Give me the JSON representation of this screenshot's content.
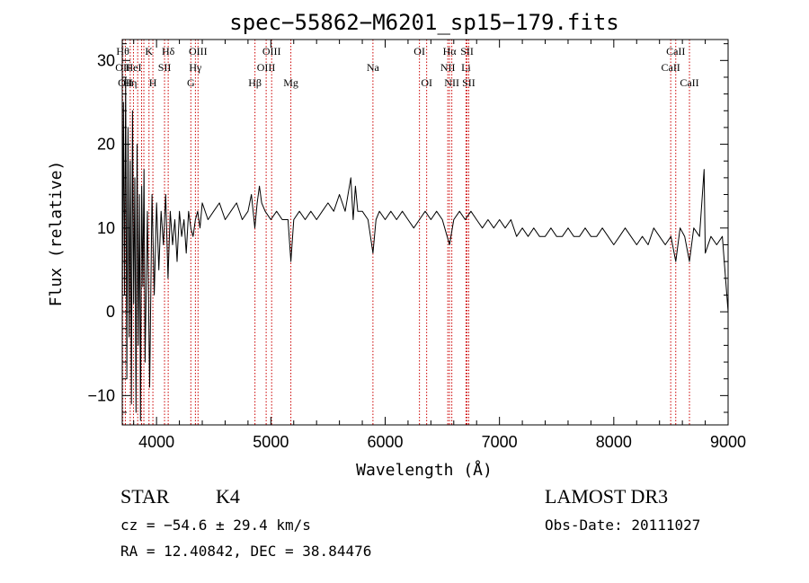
{
  "chart_data": {
    "type": "line",
    "title": "spec−55862−M6201_sp15−179.fits",
    "xlabel": "Wavelength (Å)",
    "ylabel": "Flux (relative)",
    "xlim": [
      3700,
      9000
    ],
    "ylim": [
      -13.5,
      32.5
    ],
    "x_ticks": [
      {
        "value": 4000,
        "label": "4000"
      },
      {
        "value": 5000,
        "label": "5000"
      },
      {
        "value": 6000,
        "label": "6000"
      },
      {
        "value": 7000,
        "label": "7000"
      },
      {
        "value": 8000,
        "label": "8000"
      },
      {
        "value": 9000,
        "label": "9000"
      }
    ],
    "y_ticks": [
      {
        "value": -10,
        "label": "−10"
      },
      {
        "value": 0,
        "label": "0"
      },
      {
        "value": 10,
        "label": "10"
      },
      {
        "value": 20,
        "label": "20"
      },
      {
        "value": 30,
        "label": "30"
      }
    ],
    "series": [
      {
        "name": "flux",
        "color": "#000000",
        "points": [
          [
            3700,
            0
          ],
          [
            3710,
            25
          ],
          [
            3720,
            2
          ],
          [
            3730,
            28
          ],
          [
            3740,
            -8
          ],
          [
            3750,
            22
          ],
          [
            3760,
            -3
          ],
          [
            3770,
            18
          ],
          [
            3780,
            -11
          ],
          [
            3790,
            24
          ],
          [
            3800,
            1
          ],
          [
            3810,
            16
          ],
          [
            3820,
            -12
          ],
          [
            3830,
            20
          ],
          [
            3840,
            -4
          ],
          [
            3850,
            14
          ],
          [
            3860,
            -13
          ],
          [
            3870,
            15
          ],
          [
            3880,
            3
          ],
          [
            3890,
            17
          ],
          [
            3900,
            -6
          ],
          [
            3920,
            12
          ],
          [
            3940,
            -9
          ],
          [
            3960,
            14
          ],
          [
            3980,
            2
          ],
          [
            4000,
            13
          ],
          [
            4020,
            5
          ],
          [
            4040,
            12
          ],
          [
            4060,
            8
          ],
          [
            4080,
            14
          ],
          [
            4100,
            4
          ],
          [
            4120,
            12
          ],
          [
            4140,
            8
          ],
          [
            4160,
            11
          ],
          [
            4180,
            6
          ],
          [
            4200,
            12
          ],
          [
            4220,
            9
          ],
          [
            4240,
            11
          ],
          [
            4260,
            7
          ],
          [
            4280,
            12
          ],
          [
            4300,
            10
          ],
          [
            4320,
            9
          ],
          [
            4340,
            11
          ],
          [
            4360,
            12
          ],
          [
            4380,
            10
          ],
          [
            4400,
            13
          ],
          [
            4450,
            11
          ],
          [
            4500,
            12
          ],
          [
            4550,
            13
          ],
          [
            4600,
            11
          ],
          [
            4650,
            12
          ],
          [
            4700,
            13
          ],
          [
            4750,
            11
          ],
          [
            4800,
            12
          ],
          [
            4830,
            14
          ],
          [
            4860,
            10
          ],
          [
            4880,
            13
          ],
          [
            4900,
            15
          ],
          [
            4920,
            13
          ],
          [
            4950,
            12
          ],
          [
            5000,
            11
          ],
          [
            5050,
            12
          ],
          [
            5100,
            11
          ],
          [
            5150,
            11
          ],
          [
            5175,
            6
          ],
          [
            5200,
            11
          ],
          [
            5250,
            12
          ],
          [
            5300,
            11
          ],
          [
            5350,
            12
          ],
          [
            5400,
            11
          ],
          [
            5450,
            12
          ],
          [
            5500,
            13
          ],
          [
            5550,
            12
          ],
          [
            5600,
            14
          ],
          [
            5650,
            12
          ],
          [
            5700,
            16
          ],
          [
            5720,
            11
          ],
          [
            5740,
            15
          ],
          [
            5760,
            12
          ],
          [
            5800,
            12
          ],
          [
            5850,
            11
          ],
          [
            5893,
            7
          ],
          [
            5920,
            11
          ],
          [
            5950,
            12
          ],
          [
            6000,
            11
          ],
          [
            6050,
            12
          ],
          [
            6100,
            11
          ],
          [
            6150,
            12
          ],
          [
            6200,
            11
          ],
          [
            6250,
            10
          ],
          [
            6300,
            11
          ],
          [
            6350,
            12
          ],
          [
            6400,
            11
          ],
          [
            6450,
            12
          ],
          [
            6500,
            11
          ],
          [
            6563,
            8
          ],
          [
            6600,
            11
          ],
          [
            6650,
            12
          ],
          [
            6700,
            11
          ],
          [
            6750,
            12
          ],
          [
            6800,
            11
          ],
          [
            6850,
            10
          ],
          [
            6900,
            11
          ],
          [
            6950,
            10
          ],
          [
            7000,
            11
          ],
          [
            7050,
            10
          ],
          [
            7100,
            11
          ],
          [
            7150,
            9
          ],
          [
            7200,
            10
          ],
          [
            7250,
            9
          ],
          [
            7300,
            10
          ],
          [
            7350,
            9
          ],
          [
            7400,
            9
          ],
          [
            7450,
            10
          ],
          [
            7500,
            9
          ],
          [
            7550,
            9
          ],
          [
            7600,
            10
          ],
          [
            7650,
            9
          ],
          [
            7700,
            9
          ],
          [
            7750,
            10
          ],
          [
            7800,
            9
          ],
          [
            7850,
            9
          ],
          [
            7900,
            10
          ],
          [
            7950,
            9
          ],
          [
            8000,
            8
          ],
          [
            8050,
            9
          ],
          [
            8100,
            10
          ],
          [
            8150,
            9
          ],
          [
            8200,
            8
          ],
          [
            8250,
            9
          ],
          [
            8300,
            8
          ],
          [
            8350,
            10
          ],
          [
            8400,
            9
          ],
          [
            8450,
            8
          ],
          [
            8500,
            9
          ],
          [
            8542,
            6
          ],
          [
            8580,
            10
          ],
          [
            8620,
            9
          ],
          [
            8662,
            6
          ],
          [
            8700,
            10
          ],
          [
            8750,
            9
          ],
          [
            8790,
            17
          ],
          [
            8800,
            7
          ],
          [
            8850,
            9
          ],
          [
            8900,
            8
          ],
          [
            8950,
            9
          ],
          [
            9000,
            0
          ]
        ]
      }
    ],
    "lines": [
      {
        "x": 3705,
        "labels": [
          {
            "row": 1,
            "text": "Hθ"
          },
          {
            "row": 2,
            "text": "OII"
          }
        ]
      },
      {
        "x": 3727,
        "labels": [
          {
            "row": 3,
            "text": "OII"
          }
        ]
      },
      {
        "x": 3770,
        "labels": [
          {
            "row": 3,
            "text": "Hη"
          }
        ]
      },
      {
        "x": 3798,
        "labels": [
          {
            "row": 2,
            "text": "HeI"
          }
        ]
      },
      {
        "x": 3835,
        "labels": []
      },
      {
        "x": 3869,
        "labels": []
      },
      {
        "x": 3889,
        "labels": []
      },
      {
        "x": 3934,
        "labels": [
          {
            "row": 1,
            "text": "K"
          }
        ]
      },
      {
        "x": 3968,
        "labels": [
          {
            "row": 3,
            "text": "H"
          }
        ]
      },
      {
        "x": 4070,
        "labels": [
          {
            "row": 2,
            "text": "SII"
          }
        ]
      },
      {
        "x": 4102,
        "labels": [
          {
            "row": 1,
            "text": "Hδ"
          }
        ]
      },
      {
        "x": 4300,
        "labels": [
          {
            "row": 3,
            "text": "G"
          }
        ]
      },
      {
        "x": 4340,
        "labels": [
          {
            "row": 2,
            "text": "Hγ"
          }
        ]
      },
      {
        "x": 4363,
        "labels": [
          {
            "row": 1,
            "text": "OIII"
          }
        ]
      },
      {
        "x": 4861,
        "labels": [
          {
            "row": 3,
            "text": "Hβ"
          }
        ]
      },
      {
        "x": 4959,
        "labels": [
          {
            "row": 2,
            "text": "OIII"
          }
        ]
      },
      {
        "x": 5007,
        "labels": [
          {
            "row": 1,
            "text": "OIII"
          }
        ]
      },
      {
        "x": 5175,
        "labels": [
          {
            "row": 3,
            "text": "Mg"
          }
        ]
      },
      {
        "x": 5893,
        "labels": [
          {
            "row": 2,
            "text": "Na"
          }
        ]
      },
      {
        "x": 6300,
        "labels": [
          {
            "row": 1,
            "text": "OI"
          }
        ]
      },
      {
        "x": 6363,
        "labels": [
          {
            "row": 3,
            "text": "OI"
          }
        ]
      },
      {
        "x": 6548,
        "labels": [
          {
            "row": 2,
            "text": "NII"
          }
        ]
      },
      {
        "x": 6563,
        "labels": [
          {
            "row": 1,
            "text": "Hα"
          }
        ]
      },
      {
        "x": 6583,
        "labels": [
          {
            "row": 3,
            "text": "NII"
          }
        ]
      },
      {
        "x": 6707,
        "labels": [
          {
            "row": 2,
            "text": "Li"
          }
        ]
      },
      {
        "x": 6716,
        "labels": [
          {
            "row": 1,
            "text": "SII"
          }
        ]
      },
      {
        "x": 6731,
        "labels": [
          {
            "row": 3,
            "text": "SII"
          }
        ]
      },
      {
        "x": 8498,
        "labels": [
          {
            "row": 2,
            "text": "CaII"
          }
        ]
      },
      {
        "x": 8542,
        "labels": [
          {
            "row": 1,
            "text": "CaII"
          }
        ]
      },
      {
        "x": 8662,
        "labels": [
          {
            "row": 3,
            "text": "CaII"
          }
        ]
      }
    ]
  },
  "info": {
    "class_label": "STAR",
    "subclass": "K4",
    "cz": "cz = −54.6 ± 29.4 km/s",
    "coords": "RA =  12.40842, DEC =  38.84476",
    "survey": "LAMOST DR3",
    "obs_date": "Obs-Date: 20111027"
  },
  "colors": {
    "axis": "#000000",
    "line_marker": "#cc0000",
    "spectrum": "#000000"
  }
}
